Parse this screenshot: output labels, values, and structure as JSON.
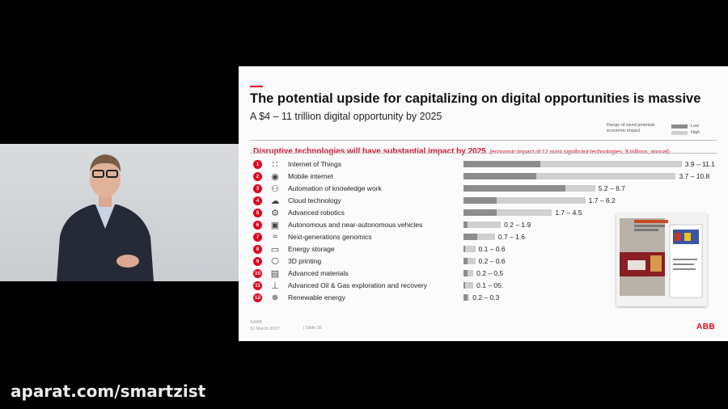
{
  "watermark": "aparat.com/smartzist",
  "slide": {
    "title": "The potential upside for capitalizing on digital opportunities is massive",
    "subtitle": "A $4 – 11 trillion digital opportunity by 2025",
    "legend_title": "Range of sized potential economic impact",
    "legend_low": "Low",
    "legend_high": "High",
    "heading_main": "Disruptive technologies will have substantial impact by 2025",
    "heading_aside": "(economic impact of 12 most significant technologies, $ trillions, annual)",
    "footer_brand": "©ABB",
    "footer_date": "12 March 2017",
    "footer_slide": "|   Slide 35",
    "logo": "ABB"
  },
  "colors": {
    "accent": "#e2001a",
    "low_bar": "#8c8c8c",
    "high_bar": "#cfcfcf"
  },
  "chart_data": {
    "type": "bar",
    "orientation": "horizontal",
    "categories": [
      "Internet of Things",
      "Mobile internet",
      "Automation of knowledge work",
      "Cloud technology",
      "Advanced robotics",
      "Autonomous and near-autonomous vehicles",
      "Next-generations genomics",
      "Energy storage",
      "3D printing",
      "Advanced materials",
      "Advanced Oil & Gas exploration and recovery",
      "Renewable energy"
    ],
    "numbers": [
      "1",
      "2",
      "3",
      "4",
      "5",
      "6",
      "7",
      "8",
      "9",
      "10",
      "11",
      "12"
    ],
    "icons": [
      "iot-icon",
      "mobile-icon",
      "automation-icon",
      "cloud-icon",
      "robot-icon",
      "vehicle-icon",
      "genomics-icon",
      "battery-icon",
      "printer-icon",
      "materials-icon",
      "oil-rig-icon",
      "wind-icon"
    ],
    "series": [
      {
        "name": "Low",
        "values": [
          3.9,
          3.7,
          5.2,
          1.7,
          1.7,
          0.2,
          0.7,
          0.1,
          0.2,
          0.2,
          0.1,
          0.2
        ]
      },
      {
        "name": "High",
        "values": [
          11.1,
          10.8,
          6.7,
          6.2,
          4.5,
          1.9,
          1.6,
          0.6,
          0.6,
          0.5,
          0.5,
          0.3
        ]
      }
    ],
    "range_labels": [
      "3.9 – 11.1",
      "3.7 – 10.8",
      "5.2 – 6.7",
      "1.7 – 6.2",
      "1.7 – 4.5",
      "0.2 – 1.9",
      "0.7 – 1.6",
      "0.1 – 0.6",
      "0.2 – 0.6",
      "0.2 – 0.5",
      "0.1 – 05.",
      "0.2 – 0.3"
    ]
  }
}
